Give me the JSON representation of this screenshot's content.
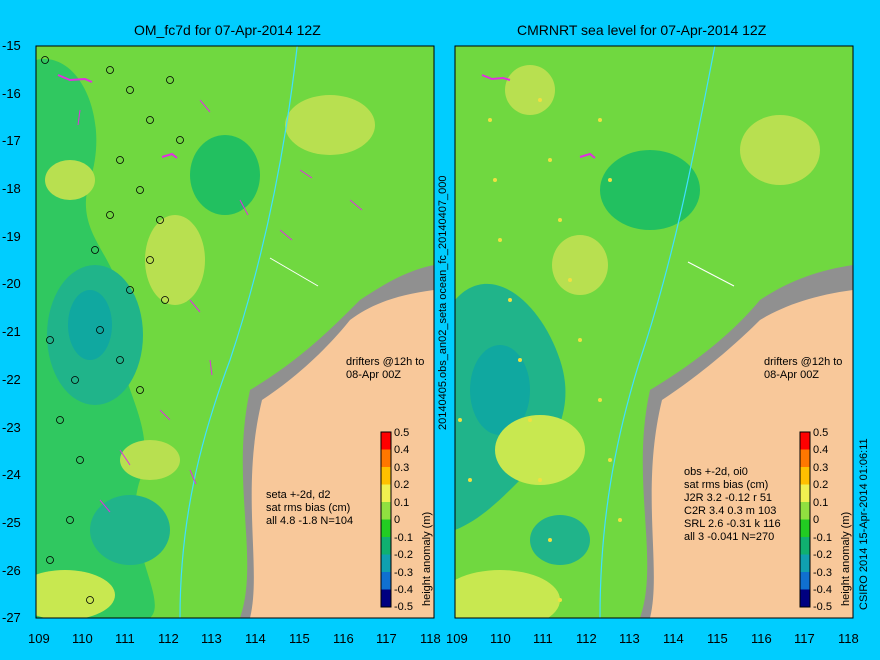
{
  "left_panel": {
    "title": "OM_fc7d for 07-Apr-2014 12Z",
    "drifter_note": [
      "drifters @12h to",
      "08-Apr 00Z"
    ],
    "stats": [
      "seta +-2d, d2",
      "sat rms bias (cm)",
      "all 4.8 -1.8 N=104"
    ]
  },
  "right_panel": {
    "title": "CMRNRT sea level  for 07-Apr-2014 12Z",
    "drifter_note": [
      "drifters @12h to",
      "08-Apr 00Z"
    ],
    "stats": [
      "obs +-2d, oi0",
      "sat rms bias (cm)",
      "J2R   3.2 -0.12 r 51",
      "C2R   3.4 0.3 m 103",
      "SRL   2.6 -0.31 k 116",
      "all   3 -0.041 N=270"
    ]
  },
  "side_label": "20140405.obs_an02_seta   ocean_fc_20140407_000",
  "credit": "CSIRO 2014  15-Apr-2014 01:06:11",
  "x_ticks": [
    "109",
    "110",
    "111",
    "112",
    "113",
    "114",
    "115",
    "116",
    "117",
    "118"
  ],
  "y_ticks": [
    "-15",
    "-16",
    "-17",
    "-18",
    "-19",
    "-20",
    "-21",
    "-22",
    "-23",
    "-24",
    "-25",
    "-26",
    "-27"
  ],
  "colorbar": {
    "label": "height anomaly (m)",
    "ticks": [
      "0.5",
      "0.4",
      "0.3",
      "0.2",
      "0.1",
      "0",
      "-0.1",
      "-0.2",
      "-0.3",
      "-0.4",
      "-0.5"
    ],
    "colors": [
      "#ff0000",
      "#ff7700",
      "#ffc000",
      "#f0f050",
      "#90e040",
      "#22cc22",
      "#10b070",
      "#10a0b0",
      "#1070d0",
      "#1030a0",
      "#000080"
    ]
  },
  "colors": {
    "background": "#00cdff",
    "land": "#f8c89a",
    "shelf": "#909090",
    "drifter": "#e030e0",
    "current": "#40e0ff"
  }
}
